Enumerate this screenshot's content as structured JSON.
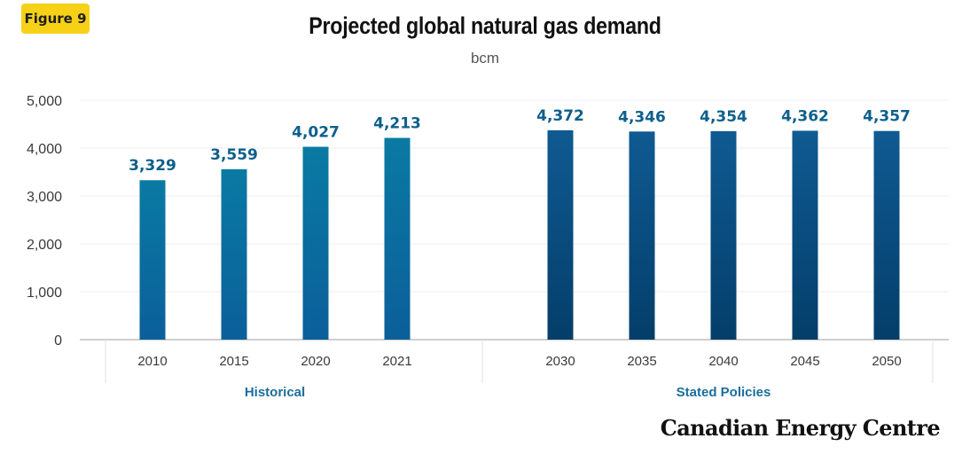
{
  "badge": {
    "label": "Figure 9"
  },
  "brand": "Canadian Energy Centre",
  "colors": {
    "historical_top": "#0a7aa3",
    "historical_bottom": "#0b5f9a",
    "policy_top": "#0f5a92",
    "policy_bottom": "#043e6a",
    "data_label": "#0e5f8c",
    "badge": "#f7d117"
  },
  "chart_data": {
    "type": "bar",
    "title": "Projected global natural gas demand",
    "subtitle": "bcm",
    "xlabel": "",
    "ylabel": "",
    "ylim": [
      0,
      5000
    ],
    "yticks": [
      "0",
      "1,000",
      "2,000",
      "3,000",
      "4,000",
      "5,000"
    ],
    "grid": true,
    "categories": [
      "2010",
      "2015",
      "2020",
      "2021",
      "2030",
      "2035",
      "2040",
      "2045",
      "2050"
    ],
    "values": [
      3329,
      3559,
      4027,
      4213,
      4372,
      4346,
      4354,
      4362,
      4357
    ],
    "value_labels": [
      "3,329",
      "3,559",
      "4,027",
      "4,213",
      "4,372",
      "4,346",
      "4,354",
      "4,362",
      "4,357"
    ],
    "groups": [
      {
        "name": "Historical",
        "categories": [
          "2010",
          "2015",
          "2020",
          "2021"
        ]
      },
      {
        "name": "Stated Policies",
        "categories": [
          "2030",
          "2035",
          "2040",
          "2045",
          "2050"
        ]
      }
    ]
  }
}
